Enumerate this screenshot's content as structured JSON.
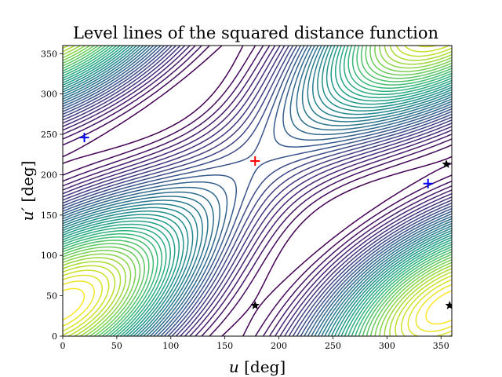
{
  "chart_data": {
    "type": "contour",
    "title": "Level lines of the squared distance function",
    "xlabel_var": "u",
    "xlabel_unit": "[deg]",
    "ylabel_var": "u′",
    "ylabel_unit": "[deg]",
    "xlim": [
      0,
      360
    ],
    "ylim": [
      0,
      360
    ],
    "xticks": [
      0,
      50,
      100,
      150,
      200,
      250,
      300,
      350
    ],
    "yticks": [
      0,
      50,
      100,
      150,
      200,
      250,
      300,
      350
    ],
    "grid": false,
    "colormap": "viridis",
    "levels": 40,
    "maximum": {
      "x": 178,
      "y": 217,
      "marker": "+",
      "color": "#ff0000"
    },
    "minima": [
      {
        "x": 20,
        "y": 246,
        "marker": "+",
        "color": "#0000ff"
      },
      {
        "x": 338,
        "y": 189,
        "marker": "+",
        "color": "#0000ff"
      }
    ],
    "saddles": [
      {
        "x": 178,
        "y": 38,
        "marker": "*",
        "color": "#000000"
      },
      {
        "x": 355,
        "y": 213,
        "marker": "*",
        "color": "#000000"
      },
      {
        "x": 358,
        "y": 38,
        "marker": "*",
        "color": "#000000"
      }
    ]
  }
}
